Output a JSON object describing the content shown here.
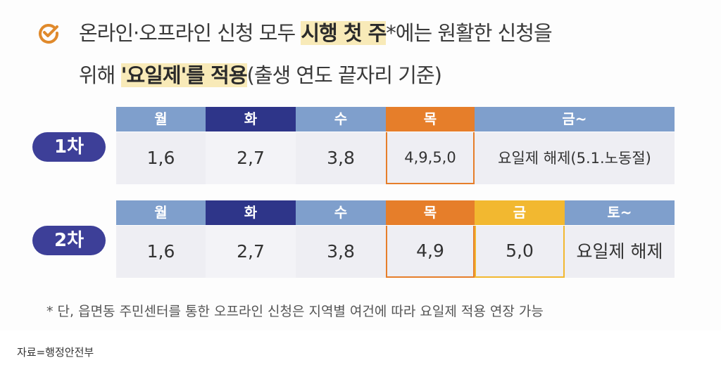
{
  "headline": {
    "line1_a": "온라인·오프라인 신청 모두 ",
    "line1_hl": "시행 첫 주",
    "line1_b": "*에는 원활한 신청을",
    "line2_a": "위해 ",
    "line2_hl": "'요일제'를 적용",
    "line2_b": "(출생 연도 끝자리 기준)"
  },
  "colors": {
    "weekday_header": "#7f9fcc",
    "tuesday_header": "#2e3589",
    "thursday_header": "#e67e2a",
    "friday_header": "#f2b830",
    "badge": "#3d3f98",
    "check_icon": "#e08a2c"
  },
  "phases": [
    {
      "label": "1차",
      "headers": [
        "월",
        "화",
        "수",
        "목",
        "금~"
      ],
      "values": [
        "1,6",
        "2,7",
        "3,8",
        "4,9,5,0",
        "요일제 해제(5.1.노동절)"
      ]
    },
    {
      "label": "2차",
      "headers": [
        "월",
        "화",
        "수",
        "목",
        "금",
        "토~"
      ],
      "values": [
        "1,6",
        "2,7",
        "3,8",
        "4,9",
        "5,0",
        "요일제 해제"
      ]
    }
  ],
  "footnote": "* 단, 읍면동 주민센터를 통한 오프라인 신청은 지역별 여건에 따라 요일제 적용 연장 가능",
  "source": "자료=행정안전부"
}
